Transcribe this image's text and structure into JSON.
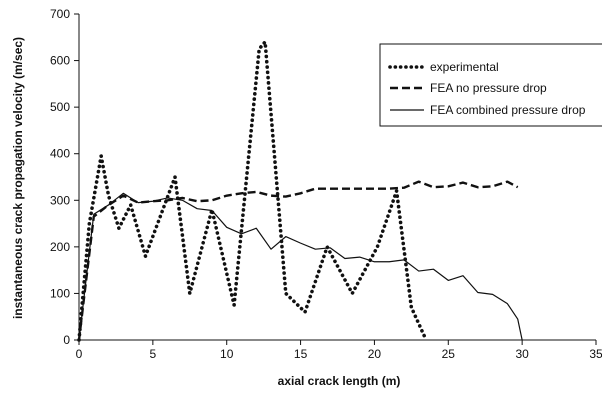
{
  "chart_data": {
    "type": "line",
    "xlabel": "axial crack length (m)",
    "ylabel": "instantaneous crack propagation velocity (m/sec)",
    "xlim": [
      0,
      35
    ],
    "ylim": [
      0,
      700
    ],
    "xticks": [
      "0",
      "5",
      "10",
      "15",
      "20",
      "25",
      "30",
      "35"
    ],
    "yticks": [
      "0",
      "100",
      "200",
      "300",
      "400",
      "500",
      "600",
      "700"
    ],
    "grid": false,
    "legend_position": "top-right",
    "series": [
      {
        "name": "experimental",
        "style": "dotted",
        "x": [
          0,
          0.7,
          1.5,
          2.0,
          2.7,
          3.5,
          4.5,
          6.5,
          7.5,
          9.0,
          10.5,
          12.2,
          12.6,
          14.0,
          15.3,
          16.8,
          18.5,
          20.2,
          21.5,
          22.5,
          23.5
        ],
        "y": [
          0,
          250,
          395,
          310,
          240,
          290,
          180,
          350,
          100,
          280,
          75,
          625,
          640,
          100,
          60,
          200,
          100,
          200,
          320,
          70,
          0
        ]
      },
      {
        "name": "FEA no pressure drop",
        "style": "dashed",
        "x": [
          0,
          1.0,
          2.0,
          3.0,
          4.0,
          5.0,
          6.0,
          7.0,
          8.0,
          9.0,
          10.0,
          11.0,
          12.0,
          13.0,
          14.0,
          15.0,
          16.0,
          17.0,
          18.0,
          19.0,
          20.0,
          21.0,
          22.0,
          23.0,
          24.0,
          25.0,
          26.0,
          27.0,
          28.0,
          29.0,
          29.7
        ],
        "y": [
          0,
          265,
          290,
          310,
          295,
          298,
          300,
          305,
          298,
          300,
          310,
          315,
          318,
          310,
          308,
          315,
          325,
          325,
          325,
          325,
          325,
          325,
          327,
          340,
          328,
          330,
          338,
          328,
          330,
          340,
          328
        ]
      },
      {
        "name": "FEA combined pressure drop",
        "style": "solid",
        "x": [
          0,
          1.0,
          2.0,
          3.0,
          4.0,
          5.0,
          6.0,
          7.0,
          8.0,
          9.0,
          10.0,
          11.0,
          12.0,
          13.0,
          14.0,
          15.0,
          16.0,
          17.0,
          18.0,
          19.0,
          20.0,
          21.0,
          22.0,
          23.0,
          24.0,
          25.0,
          26.0,
          27.0,
          28.0,
          29.0,
          29.7,
          30.0
        ],
        "y": [
          0,
          270,
          290,
          315,
          295,
          298,
          305,
          300,
          282,
          278,
          242,
          228,
          240,
          195,
          222,
          208,
          195,
          198,
          175,
          178,
          168,
          168,
          172,
          148,
          152,
          128,
          138,
          102,
          98,
          78,
          45,
          0
        ]
      }
    ]
  }
}
